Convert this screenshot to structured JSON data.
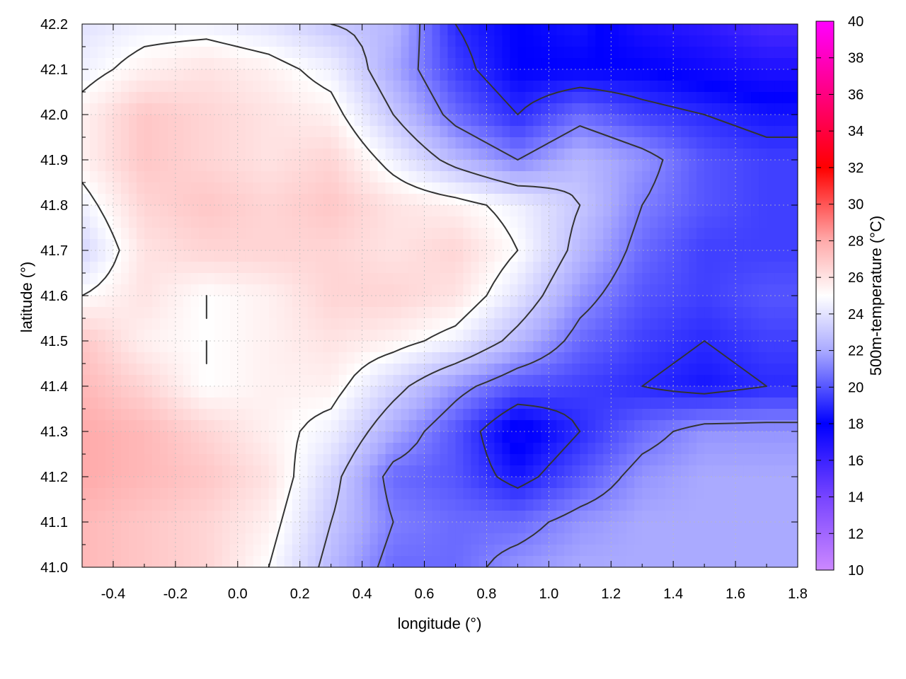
{
  "chart_data": {
    "type": "heatmap",
    "title": "",
    "xlabel": "longitude (°)",
    "ylabel": "latitude (°)",
    "colorbar_label": "500m-temperature (°C)",
    "xlim": [
      -0.5,
      1.8
    ],
    "ylim": [
      41.0,
      42.2
    ],
    "clim": [
      10,
      40
    ],
    "grid": true,
    "contours": true,
    "contour_color": "#333333",
    "x_ticks": [
      -0.4,
      -0.2,
      0.0,
      0.2,
      0.4,
      0.6,
      0.8,
      1.0,
      1.2,
      1.4,
      1.6,
      1.8
    ],
    "x_tick_labels": [
      "-0.4",
      "-0.2",
      "0.0",
      "0.2",
      "0.4",
      "0.6",
      "0.8",
      "1.0",
      "1.2",
      "1.4",
      "1.6",
      "1.8"
    ],
    "y_ticks": [
      41.0,
      41.1,
      41.2,
      41.3,
      41.4,
      41.5,
      41.6,
      41.7,
      41.8,
      41.9,
      42.0,
      42.1,
      42.2
    ],
    "y_tick_labels": [
      "41.0",
      "41.1",
      "41.2",
      "41.3",
      "41.4",
      "41.5",
      "41.6",
      "41.7",
      "41.8",
      "41.9",
      "42.0",
      "42.1",
      "42.2"
    ],
    "colorbar_ticks": [
      10,
      12,
      14,
      16,
      18,
      20,
      22,
      24,
      26,
      28,
      30,
      32,
      34,
      36,
      38,
      40
    ],
    "colorbar_tick_labels": [
      "10",
      "12",
      "14",
      "16",
      "18",
      "20",
      "22",
      "24",
      "26",
      "28",
      "30",
      "32",
      "34",
      "36",
      "38",
      "40"
    ],
    "colormap": [
      {
        "value": 10,
        "color": "#cc88ff"
      },
      {
        "value": 14,
        "color": "#7744ff"
      },
      {
        "value": 18,
        "color": "#0000ff"
      },
      {
        "value": 22,
        "color": "#aaaaff"
      },
      {
        "value": 25,
        "color": "#ffffff"
      },
      {
        "value": 28,
        "color": "#ffaaaa"
      },
      {
        "value": 32,
        "color": "#ff0000"
      },
      {
        "value": 36,
        "color": "#ff0080"
      },
      {
        "value": 40,
        "color": "#ff00ff"
      }
    ],
    "grid_lon": [
      -0.5,
      -0.3,
      -0.1,
      0.1,
      0.3,
      0.5,
      0.7,
      0.9,
      1.1,
      1.3,
      1.5,
      1.7
    ],
    "grid_lat": [
      42.2,
      42.1,
      42.0,
      41.9,
      41.8,
      41.7,
      41.6,
      41.5,
      41.4,
      41.3,
      41.2,
      41.1,
      41.0
    ],
    "values": [
      [
        24.0,
        24.5,
        24.5,
        24.0,
        23.0,
        22.5,
        19.0,
        18.0,
        18.5,
        17.0,
        16.5,
        15.5
      ],
      [
        24.5,
        25.5,
        26.0,
        25.5,
        24.5,
        22.0,
        19.5,
        18.0,
        18.0,
        18.0,
        17.5,
        17.0
      ],
      [
        25.5,
        27.0,
        26.5,
        26.0,
        25.5,
        23.0,
        20.5,
        19.0,
        20.5,
        19.5,
        19.0,
        18.5
      ],
      [
        25.5,
        27.0,
        26.5,
        26.0,
        26.5,
        24.5,
        22.5,
        21.0,
        22.5,
        21.5,
        20.0,
        19.5
      ],
      [
        24.5,
        26.5,
        27.0,
        26.5,
        27.0,
        26.0,
        25.5,
        24.5,
        23.0,
        21.0,
        20.0,
        19.5
      ],
      [
        23.5,
        26.0,
        26.5,
        26.5,
        26.5,
        26.0,
        26.5,
        25.0,
        22.5,
        20.5,
        19.5,
        19.5
      ],
      [
        25.0,
        26.0,
        25.0,
        25.5,
        26.5,
        26.5,
        26.0,
        24.0,
        21.5,
        20.0,
        19.5,
        20.0
      ],
      [
        27.0,
        25.5,
        25.0,
        25.5,
        26.0,
        25.5,
        24.5,
        22.5,
        20.5,
        19.5,
        19.0,
        19.5
      ],
      [
        27.5,
        26.5,
        25.0,
        25.5,
        25.5,
        23.5,
        21.5,
        20.0,
        19.5,
        19.0,
        18.5,
        19.0
      ],
      [
        28.0,
        27.5,
        26.5,
        25.5,
        24.5,
        22.0,
        20.0,
        17.5,
        19.0,
        20.5,
        21.5,
        21.5
      ],
      [
        28.0,
        27.5,
        27.0,
        26.0,
        23.5,
        20.5,
        20.0,
        18.5,
        20.0,
        21.5,
        22.0,
        22.0
      ],
      [
        27.5,
        27.0,
        26.5,
        25.5,
        23.0,
        21.0,
        20.5,
        20.5,
        21.5,
        22.0,
        22.0,
        22.0
      ],
      [
        27.5,
        27.0,
        26.5,
        25.0,
        22.5,
        20.5,
        20.5,
        21.5,
        22.0,
        22.0,
        22.0,
        22.0
      ]
    ],
    "contour_levels": [
      19,
      21,
      23,
      25
    ]
  }
}
